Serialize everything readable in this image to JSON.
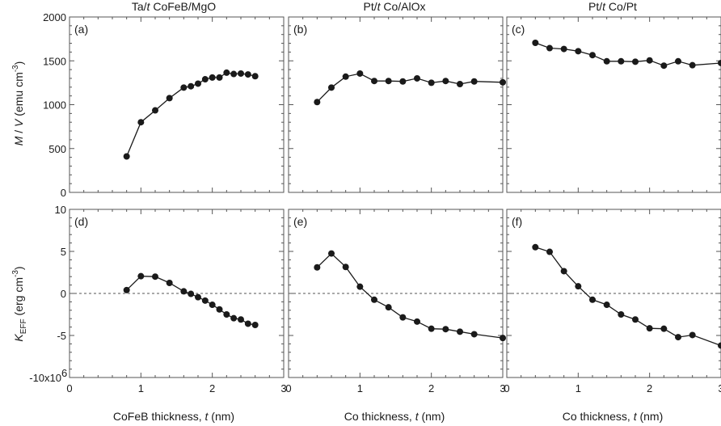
{
  "figure": {
    "columns": [
      {
        "title_pre": "Ta/",
        "title_t": "t",
        "title_post": " CoFeB/MgO"
      },
      {
        "title_pre": "Pt/",
        "title_t": "t",
        "title_post": " Co/AlOx"
      },
      {
        "title_pre": "Pt/",
        "title_t": "t",
        "title_post": " Co/Pt"
      }
    ],
    "xlabels": [
      {
        "pre": "CoFeB thickness, ",
        "t": "t",
        "post": " (nm)"
      },
      {
        "pre": "Co thickness, ",
        "t": "t",
        "post": " (nm)"
      },
      {
        "pre": "Co thickness, ",
        "t": "t",
        "post": " (nm)"
      }
    ],
    "ylabel_top": {
      "m": "M",
      "sep": " / ",
      "v": "V",
      "unit": " (emu cm",
      "exp": "-3",
      "close": ")"
    },
    "ylabel_bottom": {
      "k": "K",
      "sub": "EFF",
      "unit": " (erg cm",
      "exp": "-3",
      "close": ")"
    }
  },
  "chart_data": [
    {
      "type": "line",
      "panel_label": "(a)",
      "row": "top",
      "col": 0,
      "xlim": [
        0,
        3
      ],
      "ylim": [
        0,
        2000
      ],
      "xticks": [
        0,
        1,
        2,
        3
      ],
      "xtick_labels": [
        "0",
        "1",
        "2",
        "3"
      ],
      "yticks": [
        0,
        500,
        1000,
        1500,
        2000
      ],
      "ytick_labels": [
        "0",
        "500",
        "1000",
        "1500",
        "2000"
      ],
      "x": [
        0.8,
        1.0,
        1.2,
        1.4,
        1.6,
        1.7,
        1.8,
        1.9,
        2.0,
        2.1,
        2.2,
        2.3,
        2.4,
        2.5,
        2.6
      ],
      "y": [
        410,
        800,
        935,
        1075,
        1195,
        1210,
        1240,
        1290,
        1310,
        1310,
        1365,
        1350,
        1355,
        1345,
        1325
      ]
    },
    {
      "type": "line",
      "panel_label": "(b)",
      "row": "top",
      "col": 1,
      "xlim": [
        0,
        3
      ],
      "ylim": [
        0,
        2000
      ],
      "x": [
        0.4,
        0.6,
        0.8,
        1.0,
        1.2,
        1.4,
        1.6,
        1.8,
        2.0,
        2.2,
        2.4,
        2.6,
        3.0
      ],
      "y": [
        1030,
        1195,
        1320,
        1355,
        1270,
        1270,
        1265,
        1300,
        1250,
        1270,
        1235,
        1265,
        1255
      ]
    },
    {
      "type": "line",
      "panel_label": "(c)",
      "row": "top",
      "col": 2,
      "xlim": [
        0,
        3
      ],
      "ylim": [
        0,
        2000
      ],
      "x": [
        0.4,
        0.6,
        0.8,
        1.0,
        1.2,
        1.4,
        1.6,
        1.8,
        2.0,
        2.2,
        2.4,
        2.6,
        3.0
      ],
      "y": [
        1705,
        1645,
        1635,
        1610,
        1565,
        1495,
        1495,
        1490,
        1505,
        1445,
        1495,
        1450,
        1475
      ]
    },
    {
      "type": "line",
      "panel_label": "(d)",
      "row": "bottom",
      "col": 0,
      "xlim": [
        0,
        3
      ],
      "ylim": [
        -10,
        10
      ],
      "xticks": [
        0,
        1,
        2,
        3
      ],
      "xtick_labels": [
        "0",
        "1",
        "2",
        "3"
      ],
      "yticks": [
        -10,
        -5,
        0,
        5,
        10
      ],
      "ytick_labels": [
        "-10x10",
        "-5",
        "0",
        "5",
        "10"
      ],
      "ytick_exp": "6",
      "x": [
        0.8,
        1.0,
        1.2,
        1.4,
        1.6,
        1.7,
        1.8,
        1.9,
        2.0,
        2.1,
        2.2,
        2.3,
        2.4,
        2.5,
        2.6
      ],
      "y": [
        0.4,
        2.05,
        2.0,
        1.25,
        0.25,
        -0.05,
        -0.45,
        -0.85,
        -1.35,
        -1.9,
        -2.5,
        -2.95,
        -3.1,
        -3.6,
        -3.75
      ],
      "reference_line_y": 0
    },
    {
      "type": "line",
      "panel_label": "(e)",
      "row": "bottom",
      "col": 1,
      "xlim": [
        0,
        3
      ],
      "ylim": [
        -10,
        10
      ],
      "x": [
        0.4,
        0.6,
        0.8,
        1.0,
        1.2,
        1.4,
        1.6,
        1.8,
        2.0,
        2.2,
        2.4,
        2.6,
        3.0
      ],
      "y": [
        3.1,
        4.75,
        3.15,
        0.8,
        -0.75,
        -1.65,
        -2.85,
        -3.35,
        -4.2,
        -4.25,
        -4.55,
        -4.85,
        -5.3
      ],
      "reference_line_y": 0
    },
    {
      "type": "line",
      "panel_label": "(f)",
      "row": "bottom",
      "col": 2,
      "xlim": [
        0,
        3
      ],
      "ylim": [
        -10,
        10
      ],
      "x": [
        0.4,
        0.6,
        0.8,
        1.0,
        1.2,
        1.4,
        1.6,
        1.8,
        2.0,
        2.2,
        2.4,
        2.6,
        3.0
      ],
      "y": [
        5.5,
        4.95,
        2.65,
        0.85,
        -0.75,
        -1.35,
        -2.5,
        -3.1,
        -4.15,
        -4.2,
        -5.2,
        -4.95,
        -6.2
      ],
      "reference_line_y": 0
    }
  ]
}
